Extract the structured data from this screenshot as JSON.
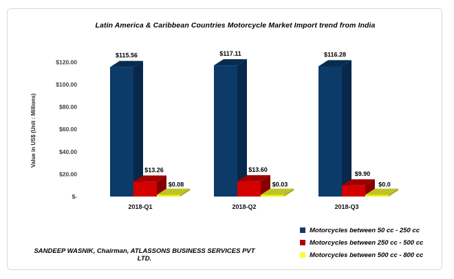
{
  "attribution": "SANDEEP WASNIK, Chairman, ATLASSONS BUSINESS SERVICES PVT LTD.",
  "chart_data": {
    "type": "bar",
    "variant": "3d-clustered-column",
    "title": "Latin America & Caribbean Countries Motorcycle Market Import trend from India",
    "ylabel": "Value in US$ (Unit : Millions)",
    "xlabel": "",
    "categories": [
      "2018-Q1",
      "2018-Q2",
      "2018-Q3"
    ],
    "series": [
      {
        "name": "Motorcycles between 50 cc - 250 cc",
        "values": [
          115.56,
          117.11,
          116.28
        ],
        "data_labels": [
          "$115.56",
          "$117.11",
          "$116.28"
        ],
        "colors": {
          "front": "#0C3A69",
          "top": "#082C50",
          "side": "#07284A"
        },
        "legend_color": "#113A67"
      },
      {
        "name": "Motorcycles between 250 cc - 500 cc",
        "values": [
          13.26,
          13.6,
          9.9
        ],
        "data_labels": [
          "$13.26",
          "$13.60",
          "$9.90"
        ],
        "colors": {
          "front": "#D40000",
          "top": "#A00000",
          "side": "#870000"
        },
        "legend_color": "#B00000"
      },
      {
        "name": "Motorcycles between 500 cc - 800 cc",
        "values": [
          0.08,
          0.03,
          0.0
        ],
        "data_labels": [
          "$0.08",
          "$0.03",
          "$0.0"
        ],
        "colors": {
          "front": "#EEF200",
          "top": "#BEC327",
          "side": "#A4A81E"
        },
        "legend_color": "#FBFB3A"
      }
    ],
    "yticks": [
      {
        "label": "$120.00",
        "value": 120
      },
      {
        "label": "$100.00",
        "value": 100
      },
      {
        "label": "$80.00",
        "value": 80
      },
      {
        "label": "$60.00",
        "value": 60
      },
      {
        "label": "$40.00",
        "value": 40
      },
      {
        "label": "$20.00",
        "value": 20
      },
      {
        "label": "$-",
        "value": 0
      }
    ],
    "ylim": [
      0,
      120
    ],
    "grid": false,
    "legend_position": "bottom-right"
  }
}
